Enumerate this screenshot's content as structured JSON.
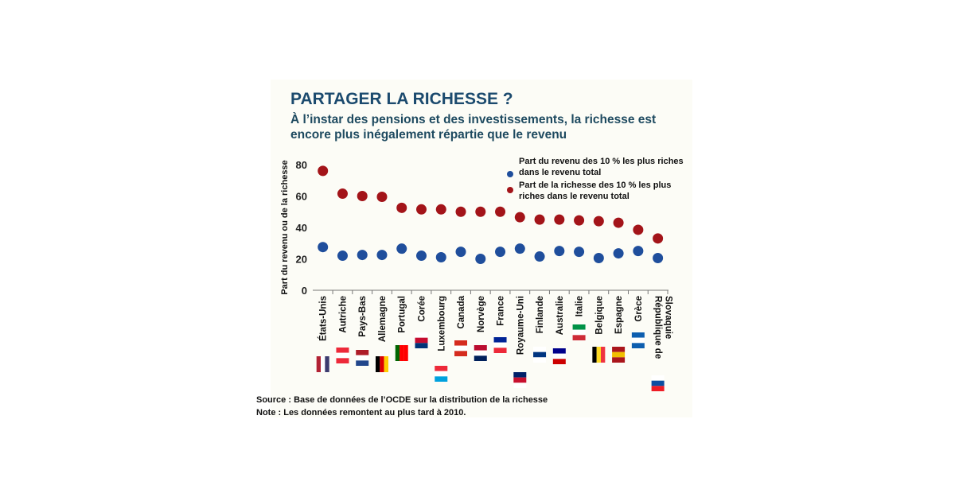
{
  "title": "PARTAGER LA RICHESSE ?",
  "subtitle": "À l’instar des pensions et des investissements, la richesse est encore plus inégalement répartie que le revenu",
  "source": "Source : Base de données de l’OCDE sur la distribution de la richesse",
  "note": "Note : Les données remontent au plus tard à 2010.",
  "chart_data": {
    "type": "scatter",
    "ylabel": "Part du revenu ou de la richesse",
    "ylim": [
      0,
      80
    ],
    "yticks": [
      0,
      20,
      40,
      60,
      80
    ],
    "categories": [
      "États-Unis",
      "Autriche",
      "Pays-Bas",
      "Allemagne",
      "Portugal",
      "Corée",
      "Luxembourg",
      "Canada",
      "Norvège",
      "France",
      "Royaume-Uni",
      "Finlande",
      "Australie",
      "Italie",
      "Belgique",
      "Espagne",
      "Grèce",
      "République de Slovaquie"
    ],
    "series": [
      {
        "name": "Part du revenu des 10 % les plus riches dans le revenu total",
        "color": "#1f4e9c",
        "values": [
          27.5,
          22,
          22.5,
          22.5,
          26.5,
          22,
          21,
          24.5,
          20,
          24.5,
          26.5,
          21.5,
          25,
          24.5,
          20.5,
          23.5,
          25,
          20.5
        ]
      },
      {
        "name": "Part de la richesse des 10 % les plus riches dans le revenu total",
        "color": "#a31419",
        "values": [
          76,
          61.5,
          60,
          59.5,
          52.5,
          51.5,
          51.5,
          50,
          50,
          50,
          46.5,
          45,
          45,
          44.5,
          44,
          43,
          38.5,
          33
        ]
      }
    ],
    "legend_position": "top-right",
    "grid": false
  }
}
